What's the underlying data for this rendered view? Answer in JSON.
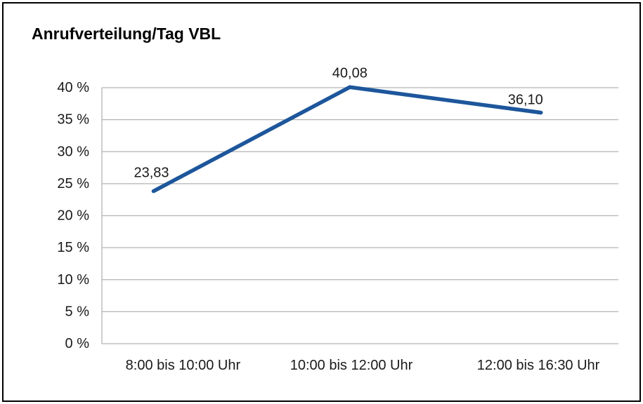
{
  "chart_data": {
    "type": "line",
    "title": "Anrufverteilung/Tag VBL",
    "categories": [
      "8:00 bis 10:00 Uhr",
      "10:00 bis 12:00 Uhr",
      "12:00 bis 16:30 Uhr"
    ],
    "values": [
      23.83,
      40.08,
      36.1
    ],
    "value_labels": [
      "23,83",
      "40,08",
      "36,10"
    ],
    "series_name": "Anrufverteilung",
    "xlabel": "",
    "ylabel": "",
    "ylim": [
      0,
      40
    ],
    "ytick_step": 5,
    "ytick_labels": [
      "0 %",
      "5 %",
      "10 %",
      "15 %",
      "20 %",
      "25 %",
      "30 %",
      "35 %",
      "40 %"
    ],
    "grid": true,
    "legend": "none",
    "line_color": "#1d569b",
    "grid_color": "#b3b3b3"
  }
}
